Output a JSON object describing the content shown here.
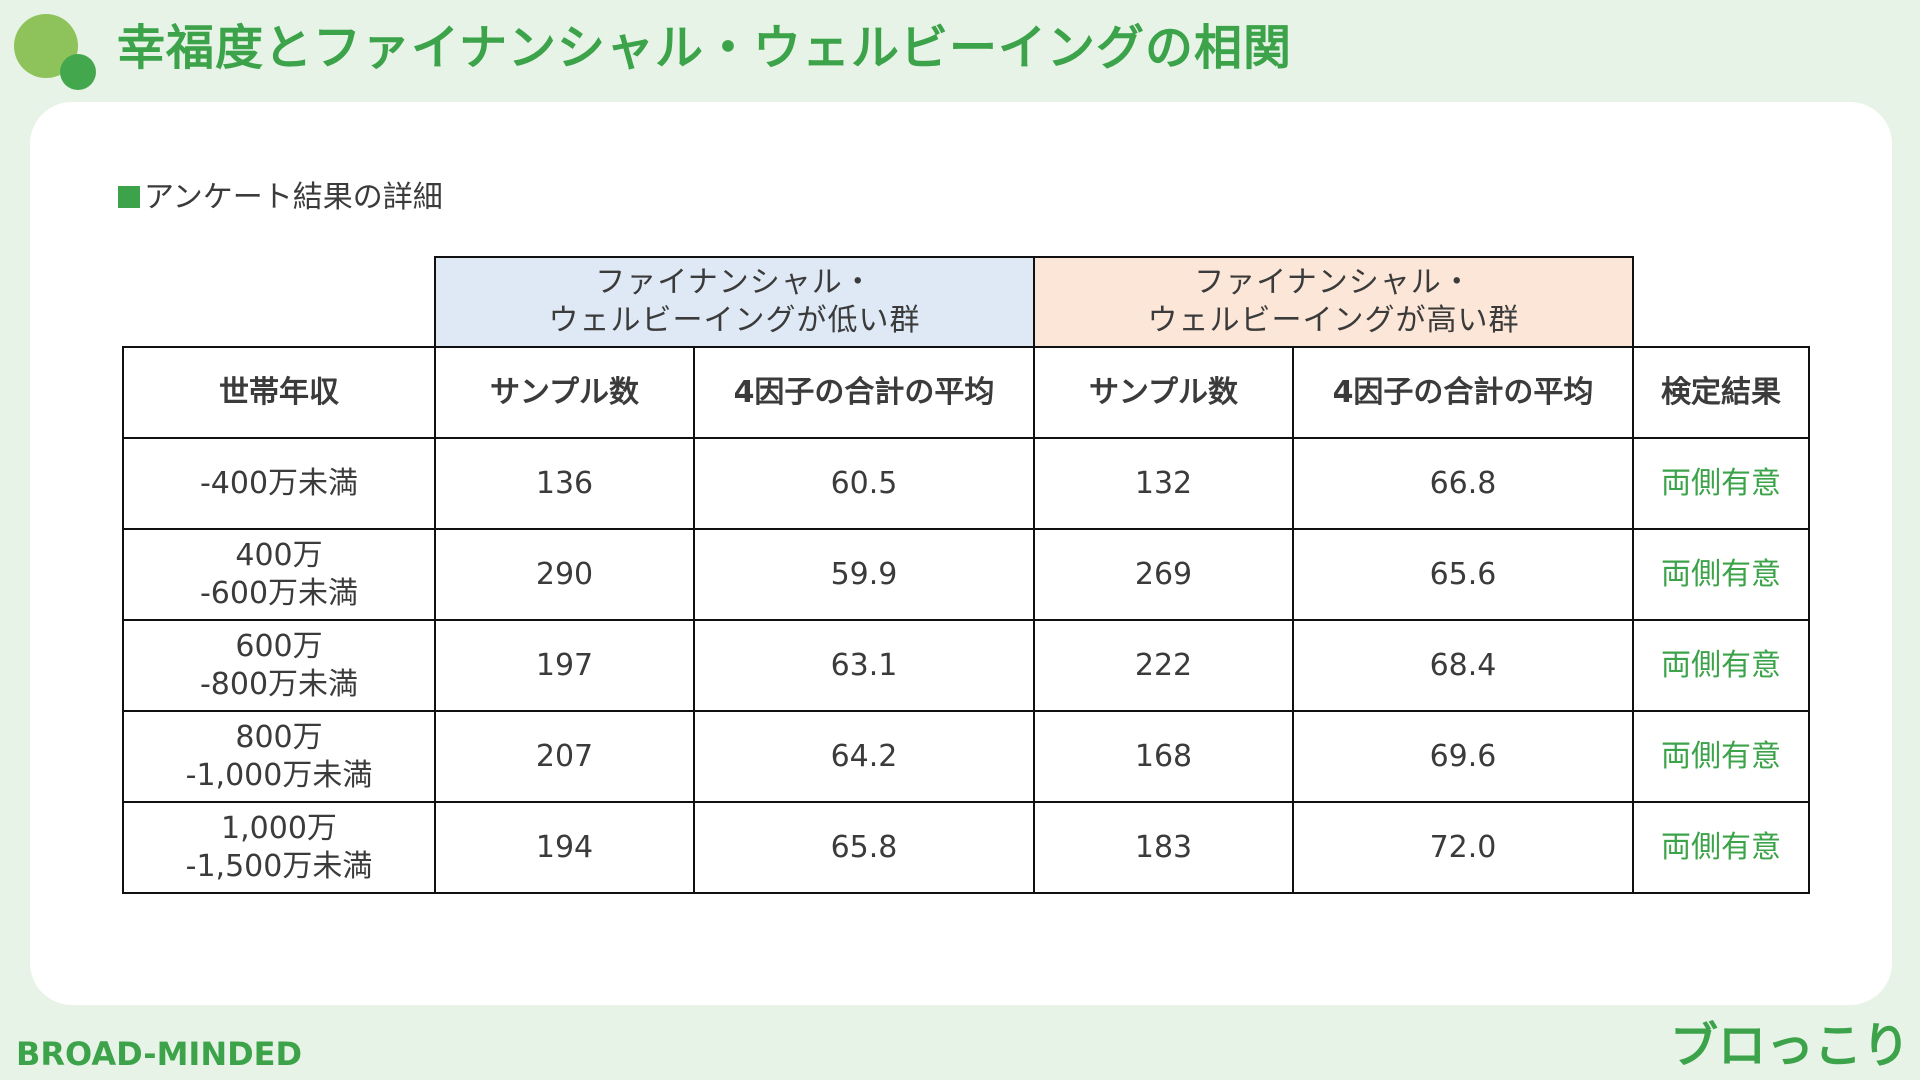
{
  "slide": {
    "title": "幸福度とファイナンシャル・ウェルビーイングの相関",
    "section_label": "アンケート結果の詳細"
  },
  "table": {
    "group_headers": {
      "low_line1": "ファイナンシャル・",
      "low_line2": "ウェルビーイングが低い群",
      "high_line1": "ファイナンシャル・",
      "high_line2": "ウェルビーイングが高い群"
    },
    "column_headers": {
      "income": "世帯年収",
      "low_samples": "サンプル数",
      "low_average": "4因子の合計の平均",
      "high_samples": "サンプル数",
      "high_average": "4因子の合計の平均",
      "result": "検定結果"
    },
    "rows": [
      {
        "income_line1": "-400万未満",
        "income_line2": "",
        "low_samples": "136",
        "low_average": "60.5",
        "high_samples": "132",
        "high_average": "66.8",
        "result": "両側有意"
      },
      {
        "income_line1": "400万",
        "income_line2": "-600万未満",
        "low_samples": "290",
        "low_average": "59.9",
        "high_samples": "269",
        "high_average": "65.6",
        "result": "両側有意"
      },
      {
        "income_line1": "600万",
        "income_line2": "-800万未満",
        "low_samples": "197",
        "low_average": "63.1",
        "high_samples": "222",
        "high_average": "68.4",
        "result": "両側有意"
      },
      {
        "income_line1": "800万",
        "income_line2": "-1,000万未満",
        "low_samples": "207",
        "low_average": "64.2",
        "high_samples": "168",
        "high_average": "69.6",
        "result": "両側有意"
      },
      {
        "income_line1": "1,000万",
        "income_line2": "-1,500万未満",
        "low_samples": "194",
        "low_average": "65.8",
        "high_samples": "183",
        "high_average": "72.0",
        "result": "両側有意"
      }
    ]
  },
  "footer": {
    "brand_left": "BROAD-MINDED",
    "brand_right": "ブロっこり"
  },
  "colors": {
    "accent_green": "#3ca34a",
    "light_green_bg": "#e6f3e6",
    "low_group_bg": "#dfe9f5",
    "high_group_bg": "#fce6d8"
  }
}
